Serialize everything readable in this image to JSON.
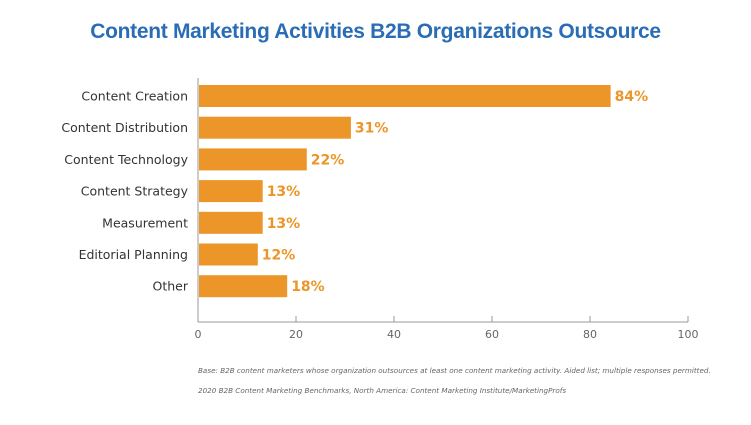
{
  "colors": {
    "title": "#2a6db5",
    "bar": "#ec9629",
    "value_label": "#ec9629",
    "axis": "#999999"
  },
  "chart_data": {
    "type": "bar",
    "orientation": "horizontal",
    "title": "Content Marketing Activities B2B Organizations Outsource",
    "categories": [
      "Content Creation",
      "Content Distribution",
      "Content Technology",
      "Content Strategy",
      "Measurement",
      "Editorial Planning",
      "Other"
    ],
    "values": [
      84,
      31,
      22,
      13,
      13,
      12,
      18
    ],
    "value_labels": [
      "84%",
      "31%",
      "22%",
      "13%",
      "13%",
      "12%",
      "18%"
    ],
    "xlabel": "",
    "ylabel": "",
    "xlim": [
      0,
      100
    ],
    "xticks": [
      0,
      20,
      40,
      60,
      80,
      100
    ],
    "grid": false,
    "legend": "none"
  },
  "footnotes": {
    "base": "Base: B2B content marketers whose organization outsources at least one content marketing activity. Aided list; multiple responses permitted.",
    "source": "2020 B2B Content Marketing Benchmarks, North America: Content Marketing Institute/MarketingProfs"
  }
}
